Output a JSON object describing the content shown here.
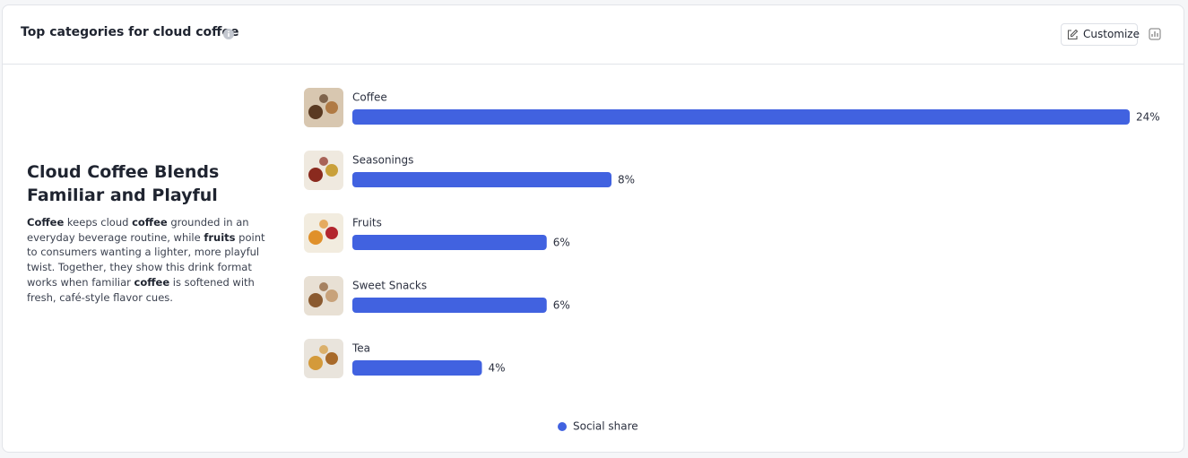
{
  "header": {
    "title": "Top categories for cloud coffee",
    "button": "Customize"
  },
  "insight": {
    "heading": "Cloud Coffee Blends Familiar and Playful",
    "body": [
      {
        "text": "Coffee",
        "bold": true
      },
      {
        "text": " keeps cloud ",
        "bold": false
      },
      {
        "text": "coffee",
        "bold": true
      },
      {
        "text": " grounded in an everyday beverage routine, while ",
        "bold": false
      },
      {
        "text": "fruits",
        "bold": true
      },
      {
        "text": " point to consumers wanting a lighter, more playful twist. Together, they show this drink format works when familiar ",
        "bold": false
      },
      {
        "text": "coffee",
        "bold": true
      },
      {
        "text": " is softened with fresh, café-style flavor cues.",
        "bold": false
      }
    ]
  },
  "chart_data": {
    "type": "bar",
    "categories": [
      "Coffee",
      "Seasonings",
      "Fruits",
      "Sweet Snacks",
      "Tea"
    ],
    "series": [
      {
        "name": "Social share",
        "color": "#4162e0",
        "values": [
          24,
          8,
          6,
          6,
          4
        ],
        "value_labels": [
          "24%",
          "8%",
          "6%",
          "6%",
          "4%"
        ]
      }
    ]
  }
}
